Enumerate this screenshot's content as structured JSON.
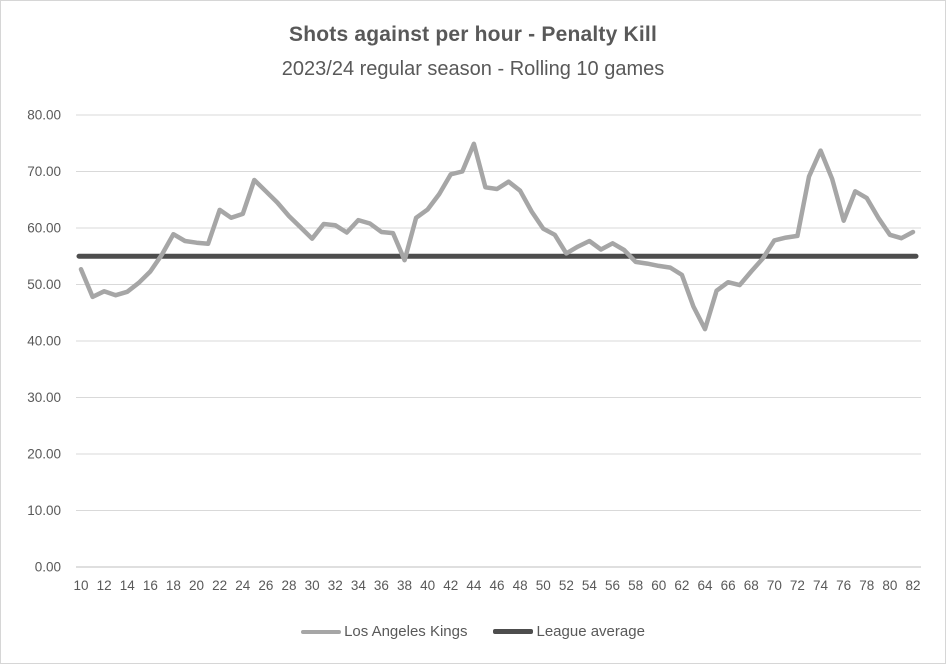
{
  "chart_data": {
    "type": "line",
    "title": "Shots against per hour - Penalty Kill",
    "subtitle": "2023/24 regular season - Rolling 10 games",
    "x_axis_label": "",
    "y_axis_label": "",
    "grid": "horizontal",
    "legend_position": "bottom",
    "ylim": [
      0,
      80
    ],
    "yticks": [
      "80.00",
      "70.00",
      "60.00",
      "50.00",
      "40.00",
      "30.00",
      "20.00",
      "10.00",
      "0.00"
    ],
    "xticks": [
      10,
      12,
      14,
      16,
      18,
      20,
      22,
      24,
      26,
      28,
      30,
      32,
      34,
      36,
      38,
      40,
      42,
      44,
      46,
      48,
      50,
      52,
      54,
      56,
      58,
      60,
      62,
      64,
      66,
      68,
      70,
      72,
      74,
      76,
      78,
      80,
      82
    ],
    "x": [
      10,
      11,
      12,
      13,
      14,
      15,
      16,
      17,
      18,
      19,
      20,
      21,
      22,
      23,
      24,
      25,
      26,
      27,
      28,
      29,
      30,
      31,
      32,
      33,
      34,
      35,
      36,
      37,
      38,
      39,
      40,
      41,
      42,
      43,
      44,
      45,
      46,
      47,
      48,
      49,
      50,
      51,
      52,
      53,
      54,
      55,
      56,
      57,
      58,
      59,
      60,
      61,
      62,
      63,
      64,
      65,
      66,
      67,
      68,
      69,
      70,
      71,
      72,
      73,
      74,
      75,
      76,
      77,
      78,
      79,
      80,
      81,
      82
    ],
    "series": [
      {
        "name": "Los Angeles Kings",
        "color": "#a6a6a6",
        "values": [
          52.7,
          47.8,
          48.8,
          48.1,
          48.7,
          50.3,
          52.3,
          55.3,
          58.9,
          57.7,
          57.4,
          57.2,
          63.2,
          61.8,
          62.5,
          68.5,
          66.5,
          64.5,
          62.1,
          60.1,
          58.1,
          60.7,
          60.5,
          59.2,
          61.4,
          60.8,
          59.3,
          59.1,
          54.3,
          61.8,
          63.3,
          66.0,
          69.5,
          70.0,
          74.9,
          67.2,
          66.9,
          68.2,
          66.6,
          62.9,
          59.9,
          58.8,
          55.5,
          56.7,
          57.7,
          56.2,
          57.3,
          56.1,
          54.0,
          53.7,
          53.3,
          53.0,
          51.7,
          46.1,
          42.1,
          48.9,
          50.4,
          49.9,
          52.3,
          54.6,
          57.8,
          58.3,
          58.6,
          69.1,
          73.7,
          68.7,
          61.3,
          66.5,
          65.3,
          61.8,
          58.8,
          58.2,
          59.3
        ]
      },
      {
        "name": "League average",
        "color": "#4d4d4d",
        "constant_value": 55.0
      }
    ],
    "colors": {
      "gridline": "#d9d9d9",
      "axis_line": "#bfbfbf",
      "tick_text": "#595959"
    }
  }
}
